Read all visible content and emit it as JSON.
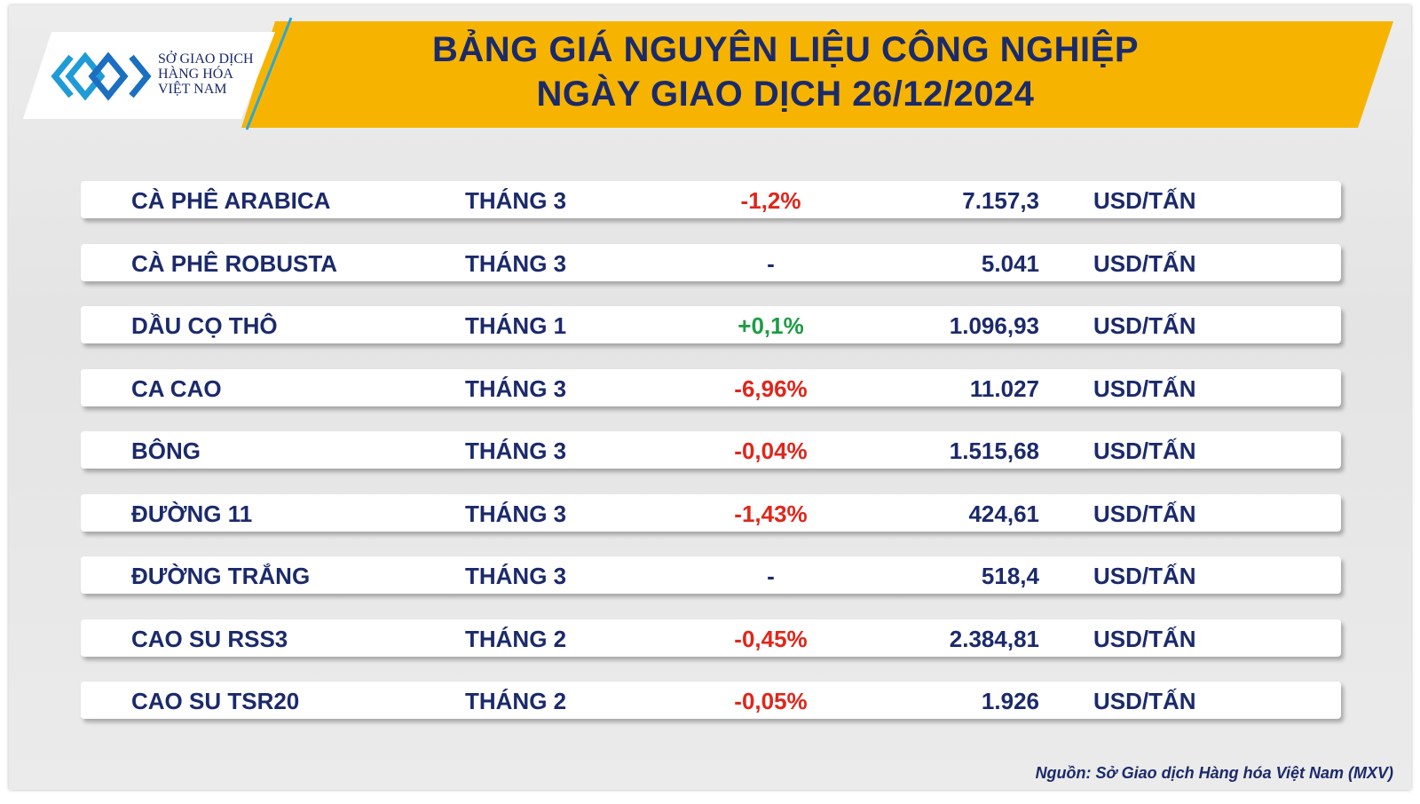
{
  "header": {
    "logo": [
      "SỞ GIAO DỊCH",
      "HÀNG HÓA",
      "VIỆT NAM"
    ],
    "title": [
      "BẢNG GIÁ NGUYÊN LIỆU CÔNG NGHIỆP",
      "NGÀY GIAO DỊCH 26/12/2024"
    ]
  },
  "table": {
    "rows": [
      [
        "CÀ PHÊ ARABICA",
        "THÁNG 3",
        "-1,2%",
        "7.157,3",
        "USD/TẤN"
      ],
      [
        "CÀ PHÊ ROBUSTA",
        "THÁNG 3",
        "-",
        "5.041",
        "USD/TẤN"
      ],
      [
        "DẦU CỌ THÔ",
        "THÁNG 1",
        "+0,1%",
        "1.096,93",
        "USD/TẤN"
      ],
      [
        "CA CAO",
        "THÁNG 3",
        "-6,96%",
        "11.027",
        "USD/TẤN"
      ],
      [
        "BÔNG",
        "THÁNG 3",
        "-0,04%",
        "1.515,68",
        "USD/TẤN"
      ],
      [
        "ĐƯỜNG 11",
        "THÁNG 3",
        "-1,43%",
        "424,61",
        "USD/TẤN"
      ],
      [
        "ĐƯỜNG TRẮNG",
        "THÁNG 3",
        "-",
        "518,4",
        "USD/TẤN"
      ],
      [
        "CAO SU RSS3",
        "THÁNG 2",
        "-0,45%",
        "2.384,81",
        "USD/TẤN"
      ],
      [
        "CAO SU TSR20",
        "THÁNG 2",
        "-0,05%",
        "1.926",
        "USD/TẤN"
      ]
    ]
  },
  "footer": {
    "source": "Nguồn: Sở Giao dịch Hàng hóa Việt Nam (MXV)"
  }
}
